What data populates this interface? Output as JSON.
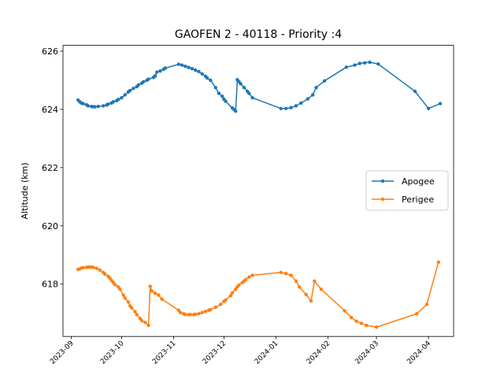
{
  "chart_data": {
    "type": "line",
    "title": "GAOFEN 2 - 40118 - Priority :4",
    "xlabel": "",
    "ylabel": "Altitude (km)",
    "xlim": [
      "2023-08-27",
      "2024-04-16"
    ],
    "ylim": [
      616.2,
      626.2
    ],
    "x_ticks": [
      "2023-09",
      "2023-10",
      "2023-11",
      "2023-12",
      "2024-01",
      "2024-02",
      "2024-03",
      "2024-04"
    ],
    "y_ticks": [
      "618",
      "620",
      "622",
      "624",
      "626"
    ],
    "grid": false,
    "legend_position": "center-right",
    "series": [
      {
        "name": "Apogee",
        "color": "#1f77b4",
        "marker": "circle",
        "points": [
          [
            "2023-09-05",
            624.32
          ],
          [
            "2023-09-06",
            624.26
          ],
          [
            "2023-09-07",
            624.22
          ],
          [
            "2023-09-08",
            624.2
          ],
          [
            "2023-09-10",
            624.16
          ],
          [
            "2023-09-11",
            624.12
          ],
          [
            "2023-09-13",
            624.1
          ],
          [
            "2023-09-14",
            624.09
          ],
          [
            "2023-09-15",
            624.09
          ],
          [
            "2023-09-17",
            624.1
          ],
          [
            "2023-09-20",
            624.12
          ],
          [
            "2023-09-22",
            624.15
          ],
          [
            "2023-09-23",
            624.18
          ],
          [
            "2023-09-25",
            624.22
          ],
          [
            "2023-09-26",
            624.26
          ],
          [
            "2023-09-28",
            624.3
          ],
          [
            "2023-09-29",
            624.34
          ],
          [
            "2023-10-01",
            624.4
          ],
          [
            "2023-10-03",
            624.5
          ],
          [
            "2023-10-05",
            624.6
          ],
          [
            "2023-10-06",
            624.65
          ],
          [
            "2023-10-08",
            624.72
          ],
          [
            "2023-10-10",
            624.78
          ],
          [
            "2023-10-11",
            624.84
          ],
          [
            "2023-10-13",
            624.9
          ],
          [
            "2023-10-14",
            624.95
          ],
          [
            "2023-10-16",
            625.0
          ],
          [
            "2023-10-17",
            625.04
          ],
          [
            "2023-10-20",
            625.1
          ],
          [
            "2023-10-21",
            625.15
          ],
          [
            "2023-10-22",
            625.28
          ],
          [
            "2023-10-24",
            625.32
          ],
          [
            "2023-10-26",
            625.38
          ],
          [
            "2023-10-27",
            625.42
          ],
          [
            "2023-11-04",
            625.55
          ],
          [
            "2023-11-06",
            625.52
          ],
          [
            "2023-11-08",
            625.48
          ],
          [
            "2023-11-10",
            625.44
          ],
          [
            "2023-11-12",
            625.4
          ],
          [
            "2023-11-14",
            625.35
          ],
          [
            "2023-11-16",
            625.3
          ],
          [
            "2023-11-18",
            625.22
          ],
          [
            "2023-11-20",
            625.14
          ],
          [
            "2023-11-21",
            625.08
          ],
          [
            "2023-11-23",
            625.0
          ],
          [
            "2023-11-26",
            624.75
          ],
          [
            "2023-11-28",
            624.55
          ],
          [
            "2023-11-30",
            624.45
          ],
          [
            "2023-12-01",
            624.35
          ],
          [
            "2023-12-02",
            624.28
          ],
          [
            "2023-12-06",
            624.05
          ],
          [
            "2023-12-07",
            624.0
          ],
          [
            "2023-12-08",
            623.94
          ],
          [
            "2023-12-09",
            625.02
          ],
          [
            "2023-12-10",
            624.95
          ],
          [
            "2023-12-11",
            624.88
          ],
          [
            "2023-12-13",
            624.75
          ],
          [
            "2023-12-15",
            624.62
          ],
          [
            "2023-12-16",
            624.55
          ],
          [
            "2023-12-18",
            624.4
          ],
          [
            "2024-01-04",
            624.03
          ],
          [
            "2024-01-07",
            624.03
          ],
          [
            "2024-01-10",
            624.06
          ],
          [
            "2024-01-13",
            624.12
          ],
          [
            "2024-01-16",
            624.22
          ],
          [
            "2024-01-20",
            624.36
          ],
          [
            "2024-01-23",
            624.5
          ],
          [
            "2024-01-25",
            624.75
          ],
          [
            "2024-01-30",
            624.98
          ],
          [
            "2024-02-12",
            625.45
          ],
          [
            "2024-02-17",
            625.52
          ],
          [
            "2024-02-20",
            625.58
          ],
          [
            "2024-02-23",
            625.6
          ],
          [
            "2024-02-26",
            625.62
          ],
          [
            "2024-03-02",
            625.56
          ],
          [
            "2024-03-24",
            624.62
          ],
          [
            "2024-04-01",
            624.03
          ],
          [
            "2024-04-08",
            624.2
          ]
        ]
      },
      {
        "name": "Perigee",
        "color": "#ff7f0e",
        "marker": "circle",
        "points": [
          [
            "2023-09-05",
            618.5
          ],
          [
            "2023-09-06",
            618.52
          ],
          [
            "2023-09-07",
            618.55
          ],
          [
            "2023-09-08",
            618.56
          ],
          [
            "2023-09-10",
            618.57
          ],
          [
            "2023-09-11",
            618.58
          ],
          [
            "2023-09-12",
            618.58
          ],
          [
            "2023-09-13",
            618.58
          ],
          [
            "2023-09-14",
            618.57
          ],
          [
            "2023-09-16",
            618.54
          ],
          [
            "2023-09-18",
            618.48
          ],
          [
            "2023-09-20",
            618.4
          ],
          [
            "2023-09-21",
            618.34
          ],
          [
            "2023-09-23",
            618.26
          ],
          [
            "2023-09-24",
            618.2
          ],
          [
            "2023-09-25",
            618.12
          ],
          [
            "2023-09-26",
            618.05
          ],
          [
            "2023-09-27",
            617.98
          ],
          [
            "2023-09-29",
            617.9
          ],
          [
            "2023-09-30",
            617.82
          ],
          [
            "2023-10-02",
            617.62
          ],
          [
            "2023-10-03",
            617.52
          ],
          [
            "2023-10-05",
            617.38
          ],
          [
            "2023-10-06",
            617.25
          ],
          [
            "2023-10-07",
            617.18
          ],
          [
            "2023-10-09",
            617.05
          ],
          [
            "2023-10-10",
            616.95
          ],
          [
            "2023-10-12",
            616.82
          ],
          [
            "2023-10-13",
            616.74
          ],
          [
            "2023-10-15",
            616.68
          ],
          [
            "2023-10-17",
            616.58
          ],
          [
            "2023-10-18",
            617.92
          ],
          [
            "2023-10-19",
            617.76
          ],
          [
            "2023-10-21",
            617.68
          ],
          [
            "2023-10-23",
            617.62
          ],
          [
            "2023-10-25",
            617.48
          ],
          [
            "2023-11-04",
            617.1
          ],
          [
            "2023-11-05",
            617.02
          ],
          [
            "2023-11-07",
            616.98
          ],
          [
            "2023-11-08",
            616.95
          ],
          [
            "2023-11-10",
            616.95
          ],
          [
            "2023-11-11",
            616.95
          ],
          [
            "2023-11-13",
            616.95
          ],
          [
            "2023-11-14",
            616.96
          ],
          [
            "2023-11-16",
            616.98
          ],
          [
            "2023-11-18",
            617.02
          ],
          [
            "2023-11-20",
            617.06
          ],
          [
            "2023-11-22",
            617.1
          ],
          [
            "2023-11-23",
            617.12
          ],
          [
            "2023-11-26",
            617.2
          ],
          [
            "2023-11-29",
            617.3
          ],
          [
            "2023-12-01",
            617.4
          ],
          [
            "2023-12-02",
            617.45
          ],
          [
            "2023-12-05",
            617.6
          ],
          [
            "2023-12-06",
            617.7
          ],
          [
            "2023-12-08",
            617.82
          ],
          [
            "2023-12-09",
            617.9
          ],
          [
            "2023-12-10",
            617.97
          ],
          [
            "2023-12-12",
            618.05
          ],
          [
            "2023-12-13",
            618.1
          ],
          [
            "2023-12-14",
            618.15
          ],
          [
            "2023-12-16",
            618.24
          ],
          [
            "2023-12-18",
            618.3
          ],
          [
            "2024-01-04",
            618.4
          ],
          [
            "2024-01-07",
            618.36
          ],
          [
            "2024-01-10",
            618.3
          ],
          [
            "2024-01-13",
            618.1
          ],
          [
            "2024-01-15",
            617.9
          ],
          [
            "2024-01-19",
            617.64
          ],
          [
            "2024-01-22",
            617.42
          ],
          [
            "2024-01-24",
            618.1
          ],
          [
            "2024-01-28",
            617.82
          ],
          [
            "2024-02-11",
            617.08
          ],
          [
            "2024-02-15",
            616.85
          ],
          [
            "2024-02-18",
            616.72
          ],
          [
            "2024-02-21",
            616.65
          ],
          [
            "2024-02-24",
            616.58
          ],
          [
            "2024-03-01",
            616.52
          ],
          [
            "2024-03-25",
            616.98
          ],
          [
            "2024-03-31",
            617.3
          ],
          [
            "2024-04-07",
            618.75
          ]
        ]
      }
    ]
  }
}
